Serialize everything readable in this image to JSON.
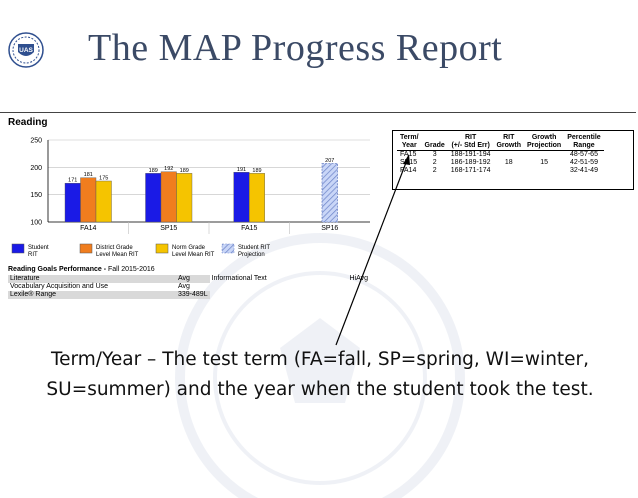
{
  "slide": {
    "title": "The MAP Progress Report",
    "logo_text": "UAS"
  },
  "report": {
    "section_title": "Reading"
  },
  "chart_data": {
    "type": "bar",
    "categories": [
      "FA14",
      "SP15",
      "FA15",
      "SP16"
    ],
    "ylim": [
      100,
      250
    ],
    "yticks": [
      100,
      150,
      200,
      250
    ],
    "series": [
      {
        "name": "Student RIT",
        "color": "#1a1ae6",
        "values": [
          171,
          189,
          191,
          null
        ]
      },
      {
        "name": "District Grade Level Mean RIT",
        "color": "#f07d1e",
        "values": [
          181,
          192,
          null,
          null
        ]
      },
      {
        "name": "Norm Grade Level Mean RIT",
        "color": "#f5c400",
        "values": [
          175,
          189,
          189,
          null
        ]
      },
      {
        "name": "Student RIT Projection",
        "color": "#a9bdf0",
        "values": [
          null,
          null,
          null,
          207
        ]
      }
    ],
    "labels": [
      [
        "171",
        "181",
        "175"
      ],
      [
        "189",
        "192",
        "189"
      ],
      [
        "191",
        "189"
      ],
      [
        "207"
      ]
    ],
    "legend": [
      [
        "Student",
        "RIT"
      ],
      [
        "District Grade",
        "Level Mean RIT"
      ],
      [
        "Norm Grade",
        "Level Mean RIT"
      ],
      [
        "Student RIT",
        "Projection"
      ]
    ],
    "grid": true,
    "legend_position": "bottom"
  },
  "goals": {
    "title": "Reading Goals Performance - ",
    "term": "Fall 2015-2016",
    "rows": [
      {
        "name": "Literature",
        "value": "Avg",
        "col3": "Informational Text",
        "col4": "HiAvg"
      },
      {
        "name": "Vocabulary Acquisition and Use",
        "value": "Avg",
        "col3": "",
        "col4": ""
      },
      {
        "name": "Lexile® Range",
        "value": "339-489L",
        "col3": "",
        "col4": ""
      }
    ]
  },
  "score_table": {
    "headers": [
      [
        "Term/",
        "Year"
      ],
      [
        "",
        "Grade"
      ],
      [
        "RIT",
        "(+/- Std Err)"
      ],
      [
        "RIT",
        "Growth"
      ],
      [
        "Growth",
        "Projection"
      ],
      [
        "Percentile",
        "Range"
      ]
    ],
    "rows": [
      [
        "FA15",
        "3",
        "188-191-194",
        "",
        "",
        "48-57-65"
      ],
      [
        "SP15",
        "2",
        "186-189-192",
        "18",
        "15",
        "42-51-59"
      ],
      [
        "FA14",
        "2",
        "168-171-174",
        "",
        "",
        "32-41-49"
      ]
    ]
  },
  "caption": {
    "line1": "Term/Year – The test term (FA=fall, SP=spring, WI=winter,",
    "line2": "SU=summer) and the year when the student took the test."
  }
}
